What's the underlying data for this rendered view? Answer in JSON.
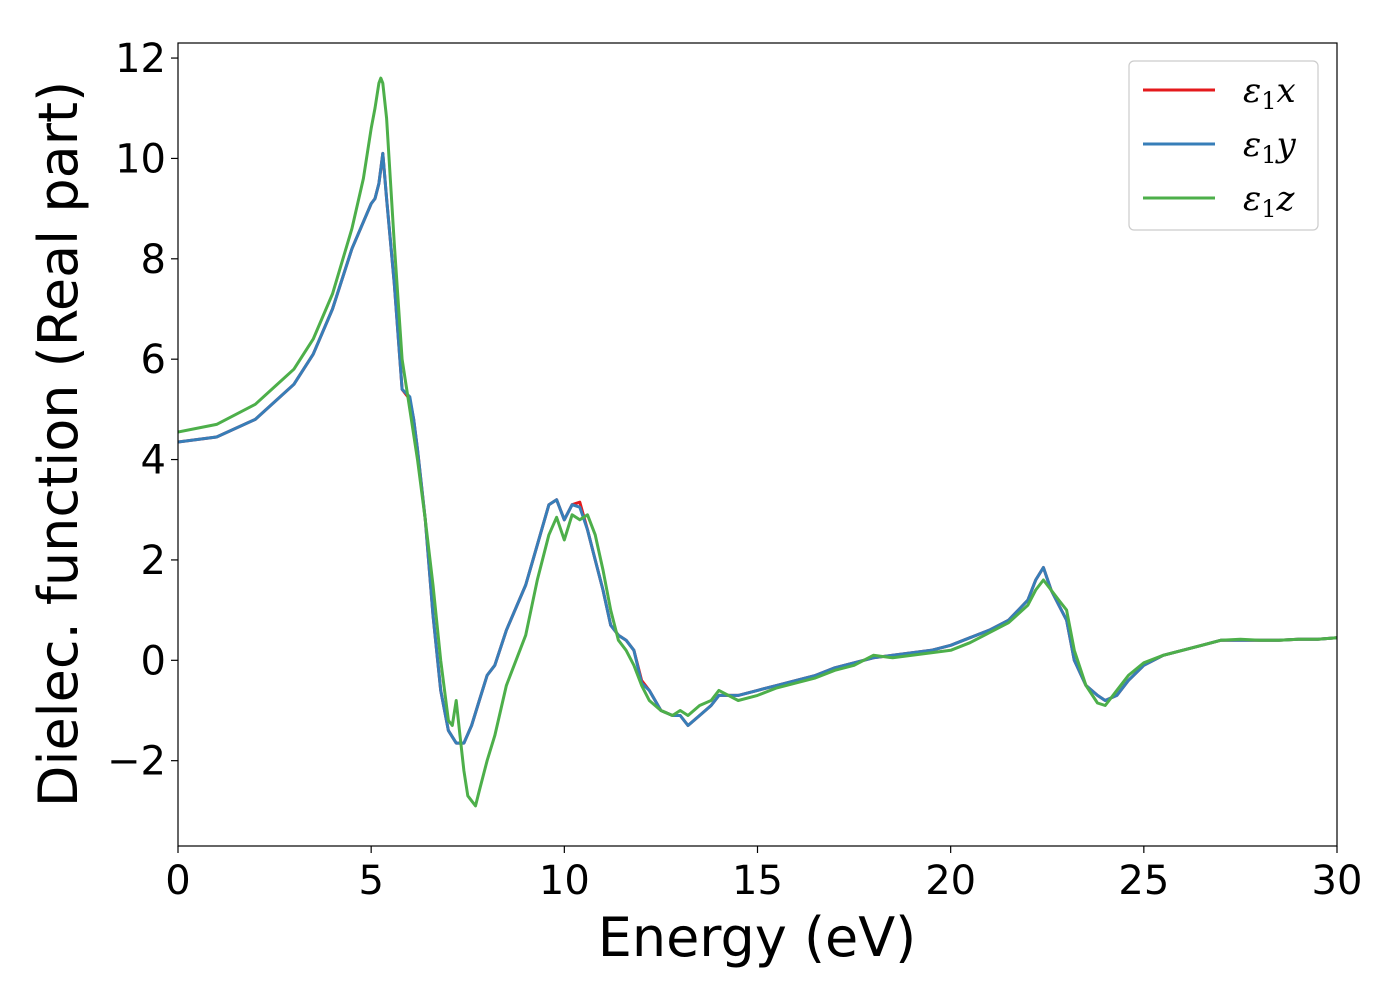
{
  "chart_data": {
    "type": "line",
    "xlabel": "Energy (eV)",
    "ylabel": "Dielec. function (Real part)",
    "xlim": [
      0,
      30
    ],
    "ylim": [
      -3.7,
      12.3
    ],
    "xticks": [
      0,
      5,
      10,
      15,
      20,
      25,
      30
    ],
    "xtick_labels": [
      "0",
      "5",
      "10",
      "15",
      "20",
      "25",
      "30"
    ],
    "yticks": [
      -2,
      0,
      2,
      4,
      6,
      8,
      10,
      12
    ],
    "ytick_labels": [
      "−2",
      "0",
      "2",
      "4",
      "6",
      "8",
      "10",
      "12"
    ],
    "grid": false,
    "legend_position": "top-right",
    "series": [
      {
        "name": "ε1x",
        "legend_main": "ε",
        "legend_sub": "1",
        "legend_suffix": "x",
        "color": "#e41a1c",
        "x": [
          0,
          1,
          2,
          3,
          3.5,
          4,
          4.5,
          5,
          5.1,
          5.2,
          5.3,
          5.4,
          5.6,
          5.8,
          6.0,
          6.1,
          6.2,
          6.4,
          6.6,
          6.8,
          7.0,
          7.2,
          7.4,
          7.6,
          7.8,
          8.0,
          8.2,
          8.5,
          9.0,
          9.3,
          9.6,
          9.8,
          10.0,
          10.2,
          10.4,
          10.6,
          10.8,
          11.0,
          11.2,
          11.4,
          11.6,
          11.8,
          12.0,
          12.2,
          12.5,
          12.8,
          13.0,
          13.2,
          13.5,
          13.8,
          14.0,
          14.5,
          15.0,
          15.5,
          16.0,
          16.5,
          17.0,
          17.5,
          18.0,
          18.5,
          19.0,
          19.5,
          20.0,
          20.5,
          21.0,
          21.5,
          22.0,
          22.2,
          22.4,
          22.6,
          22.8,
          23.0,
          23.2,
          23.5,
          23.8,
          24.0,
          24.3,
          24.6,
          25.0,
          25.5,
          26.0,
          26.5,
          27.0,
          27.5,
          28.0,
          28.5,
          29.0,
          29.5,
          30.0
        ],
        "y": [
          4.35,
          4.45,
          4.8,
          5.5,
          6.1,
          7.0,
          8.2,
          9.1,
          9.2,
          9.5,
          10.1,
          9.2,
          7.5,
          5.4,
          5.2,
          4.8,
          4.2,
          2.8,
          0.9,
          -0.6,
          -1.4,
          -1.65,
          -1.65,
          -1.3,
          -0.8,
          -0.3,
          -0.1,
          0.6,
          1.5,
          2.3,
          3.1,
          3.2,
          2.8,
          3.1,
          3.15,
          2.6,
          2.0,
          1.4,
          0.7,
          0.5,
          0.4,
          0.2,
          -0.4,
          -0.6,
          -1.0,
          -1.1,
          -1.1,
          -1.3,
          -1.1,
          -0.9,
          -0.7,
          -0.7,
          -0.6,
          -0.5,
          -0.4,
          -0.3,
          -0.15,
          -0.05,
          0.05,
          0.1,
          0.15,
          0.2,
          0.3,
          0.45,
          0.6,
          0.8,
          1.2,
          1.6,
          1.85,
          1.4,
          1.1,
          0.8,
          0.0,
          -0.5,
          -0.7,
          -0.8,
          -0.7,
          -0.4,
          -0.1,
          0.1,
          0.2,
          0.3,
          0.4,
          0.4,
          0.4,
          0.4,
          0.42,
          0.42,
          0.45
        ]
      },
      {
        "name": "ε1y",
        "legend_main": "ε",
        "legend_sub": "1",
        "legend_suffix": "y",
        "color": "#377eb8",
        "x": [
          0,
          1,
          2,
          3,
          3.5,
          4,
          4.5,
          5,
          5.1,
          5.2,
          5.3,
          5.4,
          5.6,
          5.8,
          6.0,
          6.1,
          6.2,
          6.4,
          6.6,
          6.8,
          7.0,
          7.2,
          7.4,
          7.6,
          7.8,
          8.0,
          8.2,
          8.5,
          9.0,
          9.3,
          9.6,
          9.8,
          10.0,
          10.2,
          10.4,
          10.6,
          10.8,
          11.0,
          11.2,
          11.4,
          11.6,
          11.8,
          12.0,
          12.2,
          12.5,
          12.8,
          13.0,
          13.2,
          13.5,
          13.8,
          14.0,
          14.5,
          15.0,
          15.5,
          16.0,
          16.5,
          17.0,
          17.5,
          18.0,
          18.5,
          19.0,
          19.5,
          20.0,
          20.5,
          21.0,
          21.5,
          22.0,
          22.2,
          22.4,
          22.6,
          22.8,
          23.0,
          23.2,
          23.5,
          23.8,
          24.0,
          24.3,
          24.6,
          25.0,
          25.5,
          26.0,
          26.5,
          27.0,
          27.5,
          28.0,
          28.5,
          29.0,
          29.5,
          30.0
        ],
        "y": [
          4.35,
          4.45,
          4.8,
          5.5,
          6.1,
          7.0,
          8.2,
          9.1,
          9.2,
          9.5,
          10.1,
          9.2,
          7.5,
          5.4,
          5.25,
          4.8,
          4.2,
          2.8,
          0.9,
          -0.6,
          -1.4,
          -1.65,
          -1.65,
          -1.3,
          -0.8,
          -0.3,
          -0.1,
          0.6,
          1.5,
          2.3,
          3.1,
          3.2,
          2.8,
          3.1,
          3.05,
          2.6,
          2.0,
          1.4,
          0.7,
          0.5,
          0.4,
          0.2,
          -0.45,
          -0.6,
          -1.0,
          -1.1,
          -1.1,
          -1.3,
          -1.1,
          -0.9,
          -0.7,
          -0.7,
          -0.6,
          -0.5,
          -0.4,
          -0.3,
          -0.15,
          -0.05,
          0.05,
          0.1,
          0.15,
          0.2,
          0.3,
          0.45,
          0.6,
          0.8,
          1.2,
          1.6,
          1.85,
          1.4,
          1.1,
          0.8,
          0.0,
          -0.5,
          -0.7,
          -0.8,
          -0.7,
          -0.4,
          -0.1,
          0.1,
          0.2,
          0.3,
          0.4,
          0.4,
          0.4,
          0.4,
          0.42,
          0.42,
          0.45
        ]
      },
      {
        "name": "ε1z",
        "legend_main": "ε",
        "legend_sub": "1",
        "legend_suffix": "z",
        "color": "#4daf4a",
        "x": [
          0,
          1,
          2,
          3,
          3.5,
          4,
          4.5,
          4.8,
          5.0,
          5.1,
          5.2,
          5.25,
          5.3,
          5.4,
          5.6,
          5.8,
          6.0,
          6.2,
          6.4,
          6.6,
          6.8,
          7.0,
          7.1,
          7.2,
          7.3,
          7.4,
          7.5,
          7.6,
          7.7,
          7.8,
          8.0,
          8.2,
          8.5,
          9.0,
          9.3,
          9.6,
          9.8,
          10.0,
          10.2,
          10.4,
          10.6,
          10.8,
          11.0,
          11.2,
          11.4,
          11.6,
          11.8,
          12.0,
          12.2,
          12.5,
          12.8,
          13.0,
          13.2,
          13.5,
          13.8,
          14.0,
          14.5,
          15.0,
          15.5,
          16.0,
          16.5,
          17.0,
          17.5,
          18.0,
          18.5,
          19.0,
          19.5,
          20.0,
          20.5,
          21.0,
          21.5,
          22.0,
          22.2,
          22.4,
          22.6,
          22.8,
          23.0,
          23.2,
          23.5,
          23.8,
          24.0,
          24.3,
          24.6,
          25.0,
          25.5,
          26.0,
          26.5,
          27.0,
          27.5,
          28.0,
          28.5,
          29.0,
          29.5,
          30.0
        ],
        "y": [
          4.55,
          4.7,
          5.1,
          5.8,
          6.4,
          7.3,
          8.6,
          9.6,
          10.6,
          11.0,
          11.5,
          11.6,
          11.5,
          10.8,
          8.3,
          6.0,
          5.0,
          4.0,
          2.8,
          1.5,
          0.0,
          -1.2,
          -1.3,
          -0.8,
          -1.5,
          -2.2,
          -2.7,
          -2.8,
          -2.9,
          -2.6,
          -2.0,
          -1.5,
          -0.5,
          0.5,
          1.6,
          2.5,
          2.85,
          2.4,
          2.9,
          2.8,
          2.9,
          2.5,
          1.8,
          1.0,
          0.4,
          0.2,
          -0.1,
          -0.5,
          -0.8,
          -1.0,
          -1.1,
          -1.0,
          -1.1,
          -0.9,
          -0.8,
          -0.6,
          -0.8,
          -0.7,
          -0.55,
          -0.45,
          -0.35,
          -0.2,
          -0.1,
          0.1,
          0.05,
          0.1,
          0.15,
          0.2,
          0.35,
          0.55,
          0.75,
          1.1,
          1.4,
          1.6,
          1.4,
          1.2,
          1.0,
          0.2,
          -0.5,
          -0.85,
          -0.9,
          -0.6,
          -0.3,
          -0.05,
          0.1,
          0.2,
          0.3,
          0.4,
          0.42,
          0.4,
          0.4,
          0.42,
          0.42,
          0.45
        ]
      }
    ]
  }
}
